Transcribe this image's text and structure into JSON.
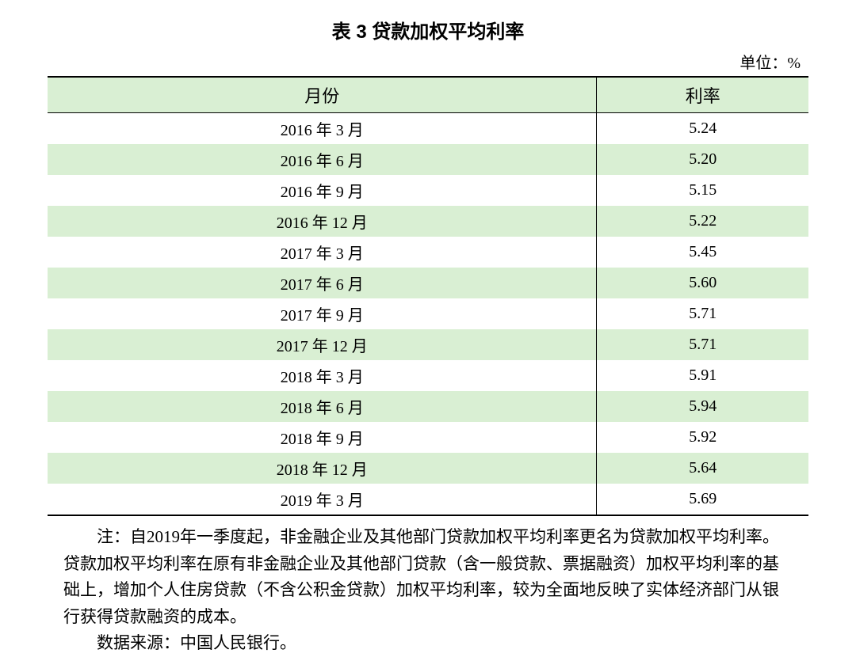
{
  "title": "表 3 贷款加权平均利率",
  "unit": "单位：%",
  "table": {
    "columns": [
      "月份",
      "利率"
    ],
    "rows": [
      [
        "2016 年 3 月",
        "5.24"
      ],
      [
        "2016 年 6 月",
        "5.20"
      ],
      [
        "2016 年 9 月",
        "5.15"
      ],
      [
        "2016 年 12 月",
        "5.22"
      ],
      [
        "2017 年 3 月",
        "5.45"
      ],
      [
        "2017 年 6 月",
        "5.60"
      ],
      [
        "2017 年 9 月",
        "5.71"
      ],
      [
        "2017 年 12 月",
        "5.71"
      ],
      [
        "2018 年 3 月",
        "5.91"
      ],
      [
        "2018 年 6 月",
        "5.94"
      ],
      [
        "2018 年 9 月",
        "5.92"
      ],
      [
        "2018 年 12 月",
        "5.64"
      ],
      [
        "2019 年 3 月",
        "5.69"
      ]
    ],
    "header_bg": "#d9efd3",
    "alt_row_bg": "#d9efd3",
    "border_color": "#000000",
    "text_color": "#000000",
    "header_fontsize": 22,
    "cell_fontsize": 20
  },
  "note": "注：自2019年一季度起，非金融企业及其他部门贷款加权平均利率更名为贷款加权平均利率。贷款加权平均利率在原有非金融企业及其他部门贷款（含一般贷款、票据融资）加权平均利率的基础上，增加个人住房贷款（不含公积金贷款）加权平均利率，较为全面地反映了实体经济部门从银行获得贷款融资的成本。",
  "source": "数据来源：中国人民银行。"
}
